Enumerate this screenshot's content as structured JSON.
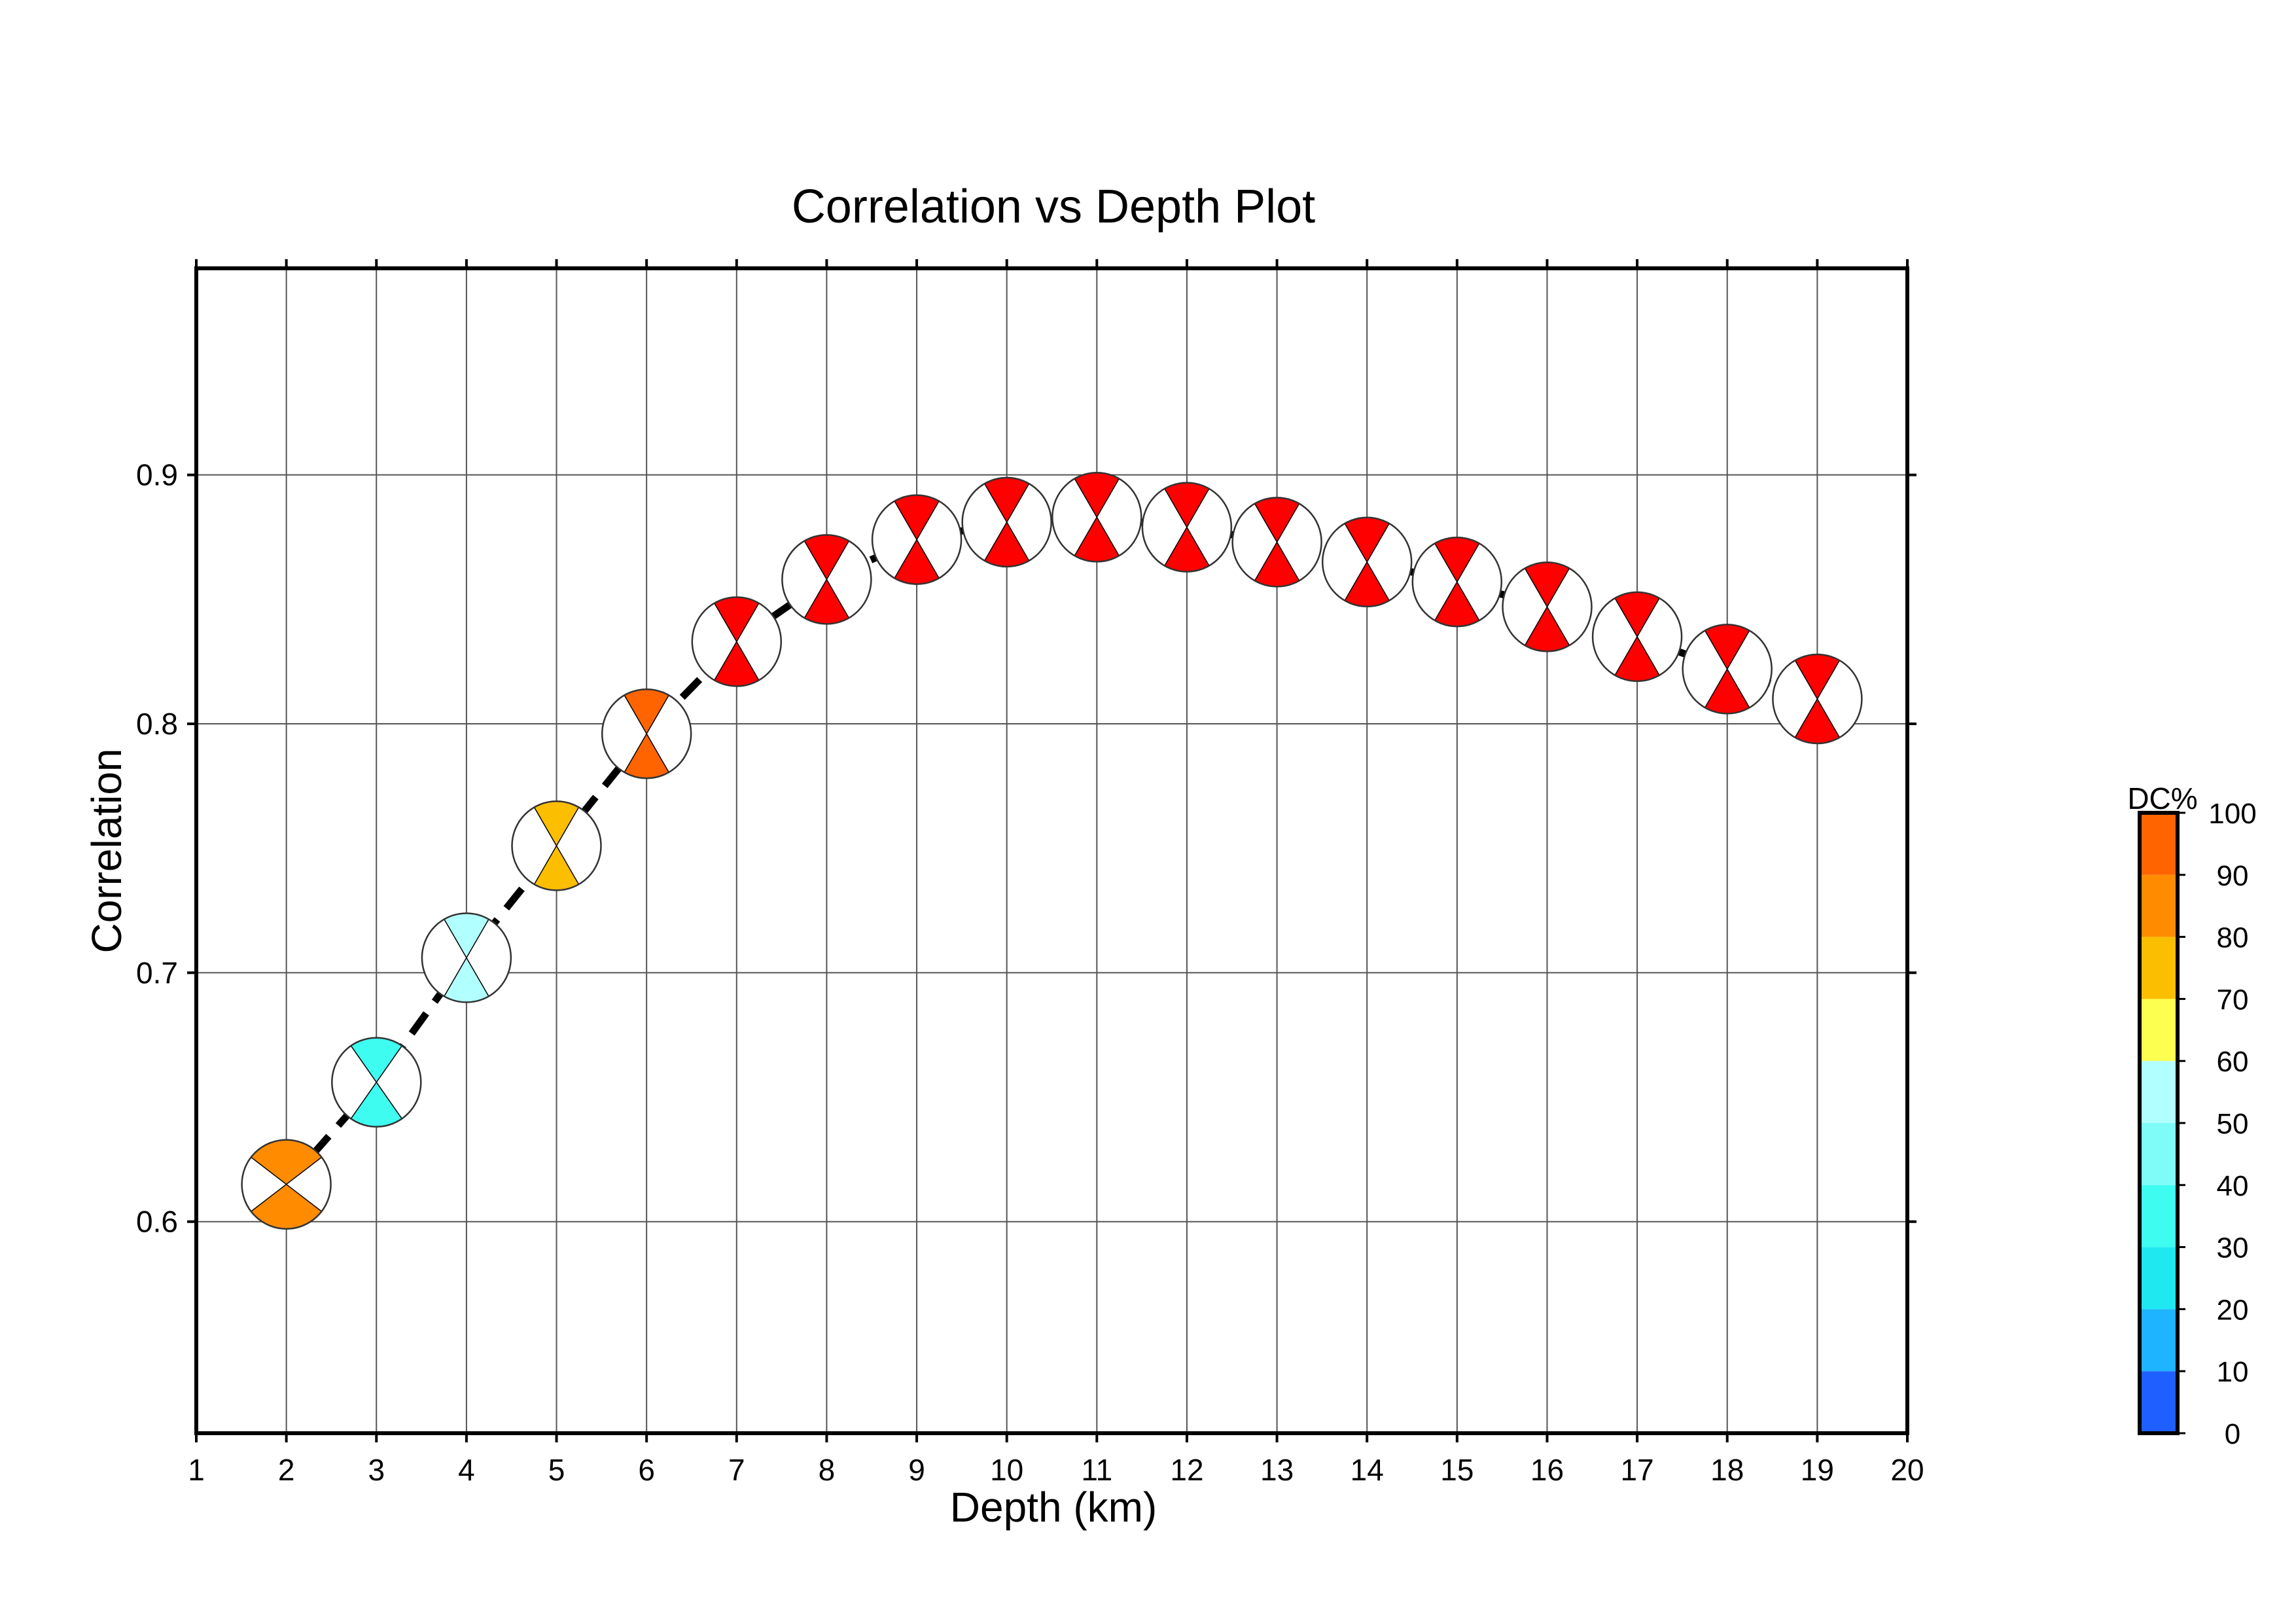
{
  "chart_data": {
    "type": "scatter",
    "title": "Correlation vs Depth Plot",
    "xlabel": "Depth (km)",
    "ylabel": "Correlation",
    "xlim": [
      1,
      20
    ],
    "ylim": [
      0.515,
      0.983
    ],
    "xticks": [
      1,
      2,
      3,
      4,
      5,
      6,
      7,
      8,
      9,
      10,
      11,
      12,
      13,
      14,
      15,
      16,
      17,
      18,
      19,
      20
    ],
    "yticks": [
      "0.6",
      "0.7",
      "0.8",
      "0.9"
    ],
    "grid": true,
    "series": [
      {
        "x": [
          2,
          3,
          4,
          5,
          6,
          7,
          8,
          9,
          10,
          11,
          12,
          13,
          14,
          15,
          16,
          17,
          18,
          19
        ],
        "y": [
          0.615,
          0.656,
          0.706,
          0.751,
          0.796,
          0.833,
          0.858,
          0.874,
          0.881,
          0.883,
          0.879,
          0.873,
          0.865,
          0.857,
          0.847,
          0.835,
          0.822,
          0.81
        ],
        "dc_percent": [
          75,
          25,
          45,
          65,
          85,
          95,
          95,
          95,
          95,
          95,
          95,
          95,
          95,
          95,
          95,
          95,
          95,
          95
        ]
      }
    ],
    "colorbar": {
      "label": "DC%",
      "ticks": [
        "0",
        "10",
        "20",
        "30",
        "40",
        "50",
        "60",
        "70",
        "80",
        "90",
        "100"
      ],
      "colors": [
        "#1f5fff",
        "#1fb4ff",
        "#1fe8f0",
        "#3ffcf0",
        "#7ffcf8",
        "#b2ffff",
        "#fcff50",
        "#fcbe00",
        "#ff8c00",
        "#ff6400",
        "#ff0000"
      ]
    }
  }
}
